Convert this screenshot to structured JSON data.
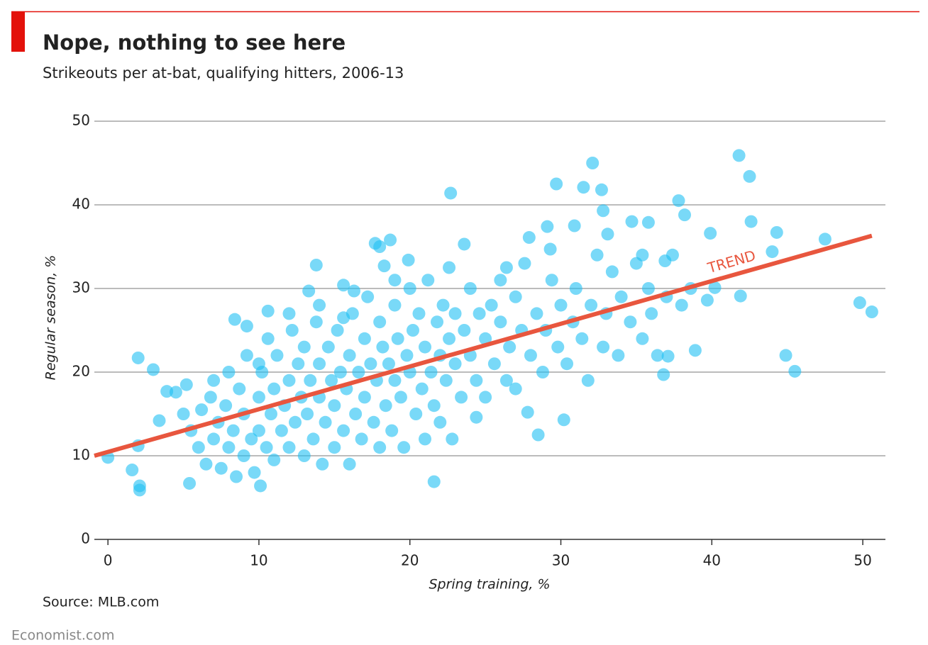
{
  "chart_data": {
    "type": "scatter",
    "title": "Nope, nothing to see here",
    "subtitle": "Strikeouts per at-bat, qualifying hitters, 2006-13",
    "xlabel": "Spring training, %",
    "ylabel": "Regular season, %",
    "source": "Source: MLB.com",
    "footer": "Economist.com",
    "color": "#1fbff3",
    "xlim": [
      -0.9,
      51.5
    ],
    "ylim": [
      0,
      50
    ],
    "xticks": [
      0,
      10,
      20,
      30,
      40,
      50
    ],
    "yticks": [
      0,
      10,
      20,
      30,
      40,
      50
    ],
    "grid": true,
    "trend": {
      "label": "TREND",
      "x": [
        -0.9,
        50.6
      ],
      "values": [
        10.0,
        36.3
      ],
      "color": "#e8563e"
    },
    "x": [
      0,
      1.6,
      2.1,
      2.1,
      2.0,
      2.0,
      3.0,
      3.4,
      3.9,
      4.5,
      5.2,
      5.4,
      8.4,
      9.2,
      10.1,
      10.6,
      13.8,
      13.3,
      21.6,
      22.7,
      29.7,
      32.1,
      31.5,
      32.7,
      32.8,
      33.1,
      41.8,
      42.5,
      42.6,
      37.8,
      38.2,
      39.9,
      44.3,
      44.0,
      47.5,
      49.8,
      50.6,
      44.9,
      45.5,
      41.9,
      40.2,
      39.7,
      38.9,
      36.8,
      37.1,
      28.5,
      30.2,
      24.4,
      27.8,
      34.7,
      35.8,
      35.4,
      36.9,
      29.3,
      29.1,
      30.9,
      27.9,
      23.6,
      17.7,
      18.7,
      19.9,
      18.3,
      15.6,
      16.3,
      5,
      5.5,
      6,
      6.2,
      6.5,
      6.8,
      7,
      7,
      7.3,
      7.5,
      7.8,
      8,
      8,
      8.3,
      8.5,
      8.7,
      9,
      9,
      9.2,
      9.5,
      9.7,
      10,
      10,
      10.2,
      10.5,
      10.6,
      10.8,
      11,
      11,
      11.2,
      11.5,
      11.7,
      12,
      12,
      12.2,
      12.4,
      12.6,
      12.8,
      13,
      13,
      13.2,
      13.4,
      13.6,
      13.8,
      14,
      14,
      14.2,
      14.4,
      14.6,
      14.8,
      15,
      15,
      15.2,
      15.4,
      15.6,
      15.8,
      16,
      16,
      16.2,
      16.4,
      16.6,
      16.8,
      17,
      17,
      17.2,
      17.4,
      17.6,
      17.8,
      18,
      18,
      18.2,
      18.4,
      18.6,
      18.8,
      19,
      19,
      19.2,
      19.4,
      19.6,
      19.8,
      20,
      20,
      20.2,
      20.4,
      20.6,
      20.8,
      21,
      21,
      21.2,
      21.4,
      21.6,
      21.8,
      22,
      22,
      22.2,
      22.4,
      22.6,
      22.8,
      23,
      23,
      23.4,
      23.6,
      24,
      24,
      24.4,
      24.6,
      25,
      25,
      25.4,
      25.6,
      26,
      26,
      26.4,
      26.6,
      27,
      27,
      27.4,
      27.6,
      28,
      28.4,
      28.8,
      29,
      29.4,
      29.8,
      30,
      30.4,
      30.8,
      31,
      31.4,
      31.8,
      32,
      32.4,
      32.8,
      33,
      33.4,
      33.8,
      34,
      34.6,
      35,
      35.4,
      35.8,
      36,
      36.4,
      37,
      37.4,
      38,
      38.6,
      15.6,
      18,
      14,
      12,
      10,
      19,
      22.6,
      26.4
    ],
    "values": [
      9.8,
      8.3,
      6.4,
      5.9,
      21.7,
      11.2,
      20.3,
      14.2,
      17.7,
      17.6,
      18.5,
      6.7,
      26.3,
      25.5,
      6.4,
      27.3,
      32.8,
      29.7,
      6.9,
      41.4,
      42.5,
      45.0,
      42.1,
      41.8,
      39.3,
      36.5,
      45.9,
      43.4,
      38.0,
      40.5,
      38.8,
      36.6,
      36.7,
      34.4,
      35.9,
      28.3,
      27.2,
      22.0,
      20.1,
      29.1,
      30.1,
      28.6,
      22.6,
      19.7,
      21.9,
      12.5,
      14.3,
      14.6,
      15.2,
      38.0,
      37.9,
      34.0,
      33.3,
      34.7,
      37.4,
      37.5,
      36.1,
      35.3,
      35.4,
      35.8,
      33.4,
      32.7,
      30.4,
      29.7,
      15,
      13,
      11,
      15.5,
      9,
      17,
      12,
      19,
      14,
      8.5,
      16,
      11,
      20,
      13,
      7.5,
      18,
      10,
      15,
      22,
      12,
      8,
      17,
      13,
      20,
      11,
      24,
      15,
      18,
      9.5,
      22,
      13,
      16,
      19,
      11,
      25,
      14,
      21,
      17,
      10,
      23,
      15,
      19,
      12,
      26,
      17,
      21,
      9,
      14,
      23,
      19,
      16,
      11,
      25,
      20,
      13,
      18,
      22,
      9,
      27,
      15,
      20,
      12,
      24,
      17,
      29,
      21,
      14,
      19,
      26,
      11,
      23,
      16,
      21,
      13,
      28,
      19,
      24,
      17,
      11,
      22,
      30,
      20,
      25,
      15,
      27,
      18,
      23,
      12,
      31,
      20,
      16,
      26,
      22,
      14,
      28,
      19,
      24,
      12,
      27,
      21,
      17,
      25,
      22,
      30,
      19,
      27,
      24,
      17,
      28,
      21,
      26,
      31,
      19,
      23,
      29,
      18,
      25,
      33,
      22,
      27,
      20,
      25,
      31,
      23,
      28,
      21,
      26,
      30,
      24,
      19,
      28,
      34,
      23,
      27,
      32,
      22,
      29,
      26,
      33,
      24,
      30,
      27,
      22,
      29,
      34,
      28,
      30,
      26.5,
      35,
      28,
      27,
      21,
      31,
      32.5,
      32.5
    ]
  }
}
